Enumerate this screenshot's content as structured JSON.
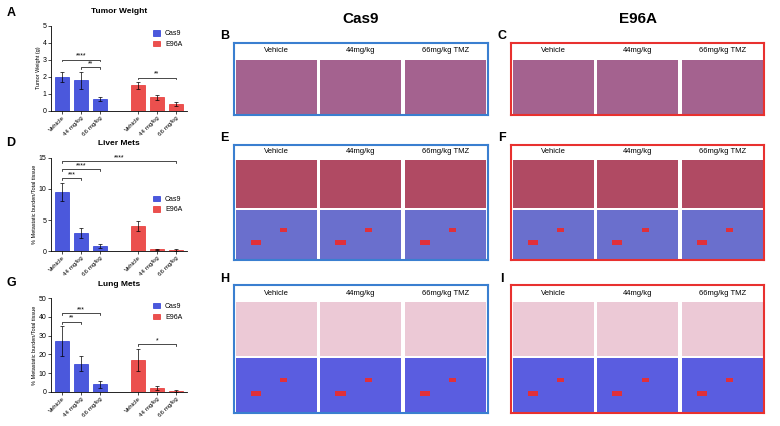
{
  "chart_data": [
    {
      "type": "bar",
      "letter": "A",
      "title": "Tumor Weight",
      "y_label": "Tumor Weight (g)",
      "categories": [
        "Vehicle",
        "44 mg/kg",
        "66 mg/kg",
        null,
        "Vehicle",
        "44 mg/kg",
        "66 mg/kg"
      ],
      "series": [
        {
          "name": "Cas9",
          "color": "#2b3bd6",
          "values": [
            2.0,
            1.8,
            0.7,
            null,
            null,
            null,
            null
          ],
          "errors": [
            0.3,
            0.5,
            0.1,
            null,
            null,
            null,
            null
          ]
        },
        {
          "name": "E96A",
          "color": "#e8312f",
          "values": [
            null,
            null,
            null,
            null,
            1.5,
            0.8,
            0.4
          ],
          "errors": [
            null,
            null,
            null,
            null,
            0.2,
            0.15,
            0.1
          ]
        }
      ],
      "ylim": [
        0,
        5
      ],
      "yticks": [
        0,
        1,
        2,
        3,
        4,
        5
      ],
      "legend": "upper right",
      "annotations": [
        {
          "from": 1,
          "to": 2,
          "text": "**"
        },
        {
          "from": 0,
          "to": 2,
          "text": "****"
        },
        {
          "from": 4,
          "to": 6,
          "text": "**"
        }
      ]
    },
    {
      "type": "bar",
      "letter": "D",
      "title": "Liver Mets",
      "y_label": "% Metastatic burden/Total tissue",
      "categories": [
        "Vehicle",
        "44 mg/kg",
        "66 mg/kg",
        null,
        "Vehicle",
        "44 mg/kg",
        "66 mg/kg"
      ],
      "series": [
        {
          "name": "Cas9",
          "color": "#2b3bd6",
          "values": [
            9.5,
            3.0,
            0.8,
            null,
            null,
            null,
            null
          ],
          "errors": [
            1.5,
            0.8,
            0.3,
            null,
            null,
            null,
            null
          ]
        },
        {
          "name": "E96A",
          "color": "#e8312f",
          "values": [
            null,
            null,
            null,
            null,
            4.0,
            0.3,
            0.2
          ],
          "errors": [
            null,
            null,
            null,
            null,
            0.8,
            0.1,
            0.1
          ]
        }
      ],
      "ylim": [
        0,
        15
      ],
      "yticks": [
        0,
        5,
        10,
        15
      ],
      "legend": "center right",
      "annotations": [
        {
          "from": 0,
          "to": 1,
          "text": "***"
        },
        {
          "from": 0,
          "to": 2,
          "text": "****"
        },
        {
          "from": 0,
          "to": 6,
          "text": "****"
        }
      ]
    },
    {
      "type": "bar",
      "letter": "G",
      "title": "Lung Mets",
      "y_label": "% Metastatic burden/Total tissue",
      "categories": [
        "Vehicle",
        "44 mg/kg",
        "66 mg/kg",
        null,
        "Vehicle",
        "44 mg/kg",
        "66 mg/kg"
      ],
      "series": [
        {
          "name": "Cas9",
          "color": "#2b3bd6",
          "values": [
            27,
            15,
            4,
            null,
            null,
            null,
            null
          ],
          "errors": [
            8,
            4,
            2,
            null,
            null,
            null,
            null
          ]
        },
        {
          "name": "E96A",
          "color": "#e8312f",
          "values": [
            null,
            null,
            null,
            null,
            17,
            2,
            0.5
          ],
          "errors": [
            null,
            null,
            null,
            null,
            6,
            1,
            0.3
          ]
        }
      ],
      "ylim": [
        0,
        50
      ],
      "yticks": [
        0,
        10,
        20,
        30,
        40,
        50
      ],
      "legend": "upper right",
      "annotations": [
        {
          "from": 0,
          "to": 1,
          "text": "**"
        },
        {
          "from": 0,
          "to": 2,
          "text": "***"
        },
        {
          "from": 4,
          "to": 6,
          "text": "*"
        }
      ]
    }
  ],
  "headers": [
    "Cas9",
    "E96A"
  ],
  "image_panels": [
    {
      "letter": "B",
      "color": "#3a7fd0",
      "columns": [
        "Vehicle",
        "44mg/kg",
        "66mg/kg TMZ"
      ]
    },
    {
      "letter": "C",
      "color": "#e8312f",
      "columns": [
        "Vehicle",
        "44mg/kg",
        "66mg/kg TMZ"
      ]
    },
    {
      "letter": "E",
      "color": "#3a7fd0",
      "columns": [
        "Vehicle",
        "44mg/kg",
        "66mg/kg TMZ"
      ]
    },
    {
      "letter": "F",
      "color": "#e8312f",
      "columns": [
        "Vehicle",
        "44mg/kg",
        "66mg/kg TMZ"
      ]
    },
    {
      "letter": "H",
      "color": "#3a7fd0",
      "columns": [
        "Vehicle",
        "44mg/kg",
        "66mg/kg TMZ"
      ]
    },
    {
      "letter": "I",
      "color": "#e8312f",
      "columns": [
        "Vehicle",
        "44mg/kg",
        "66mg/kg TMZ"
      ]
    }
  ]
}
